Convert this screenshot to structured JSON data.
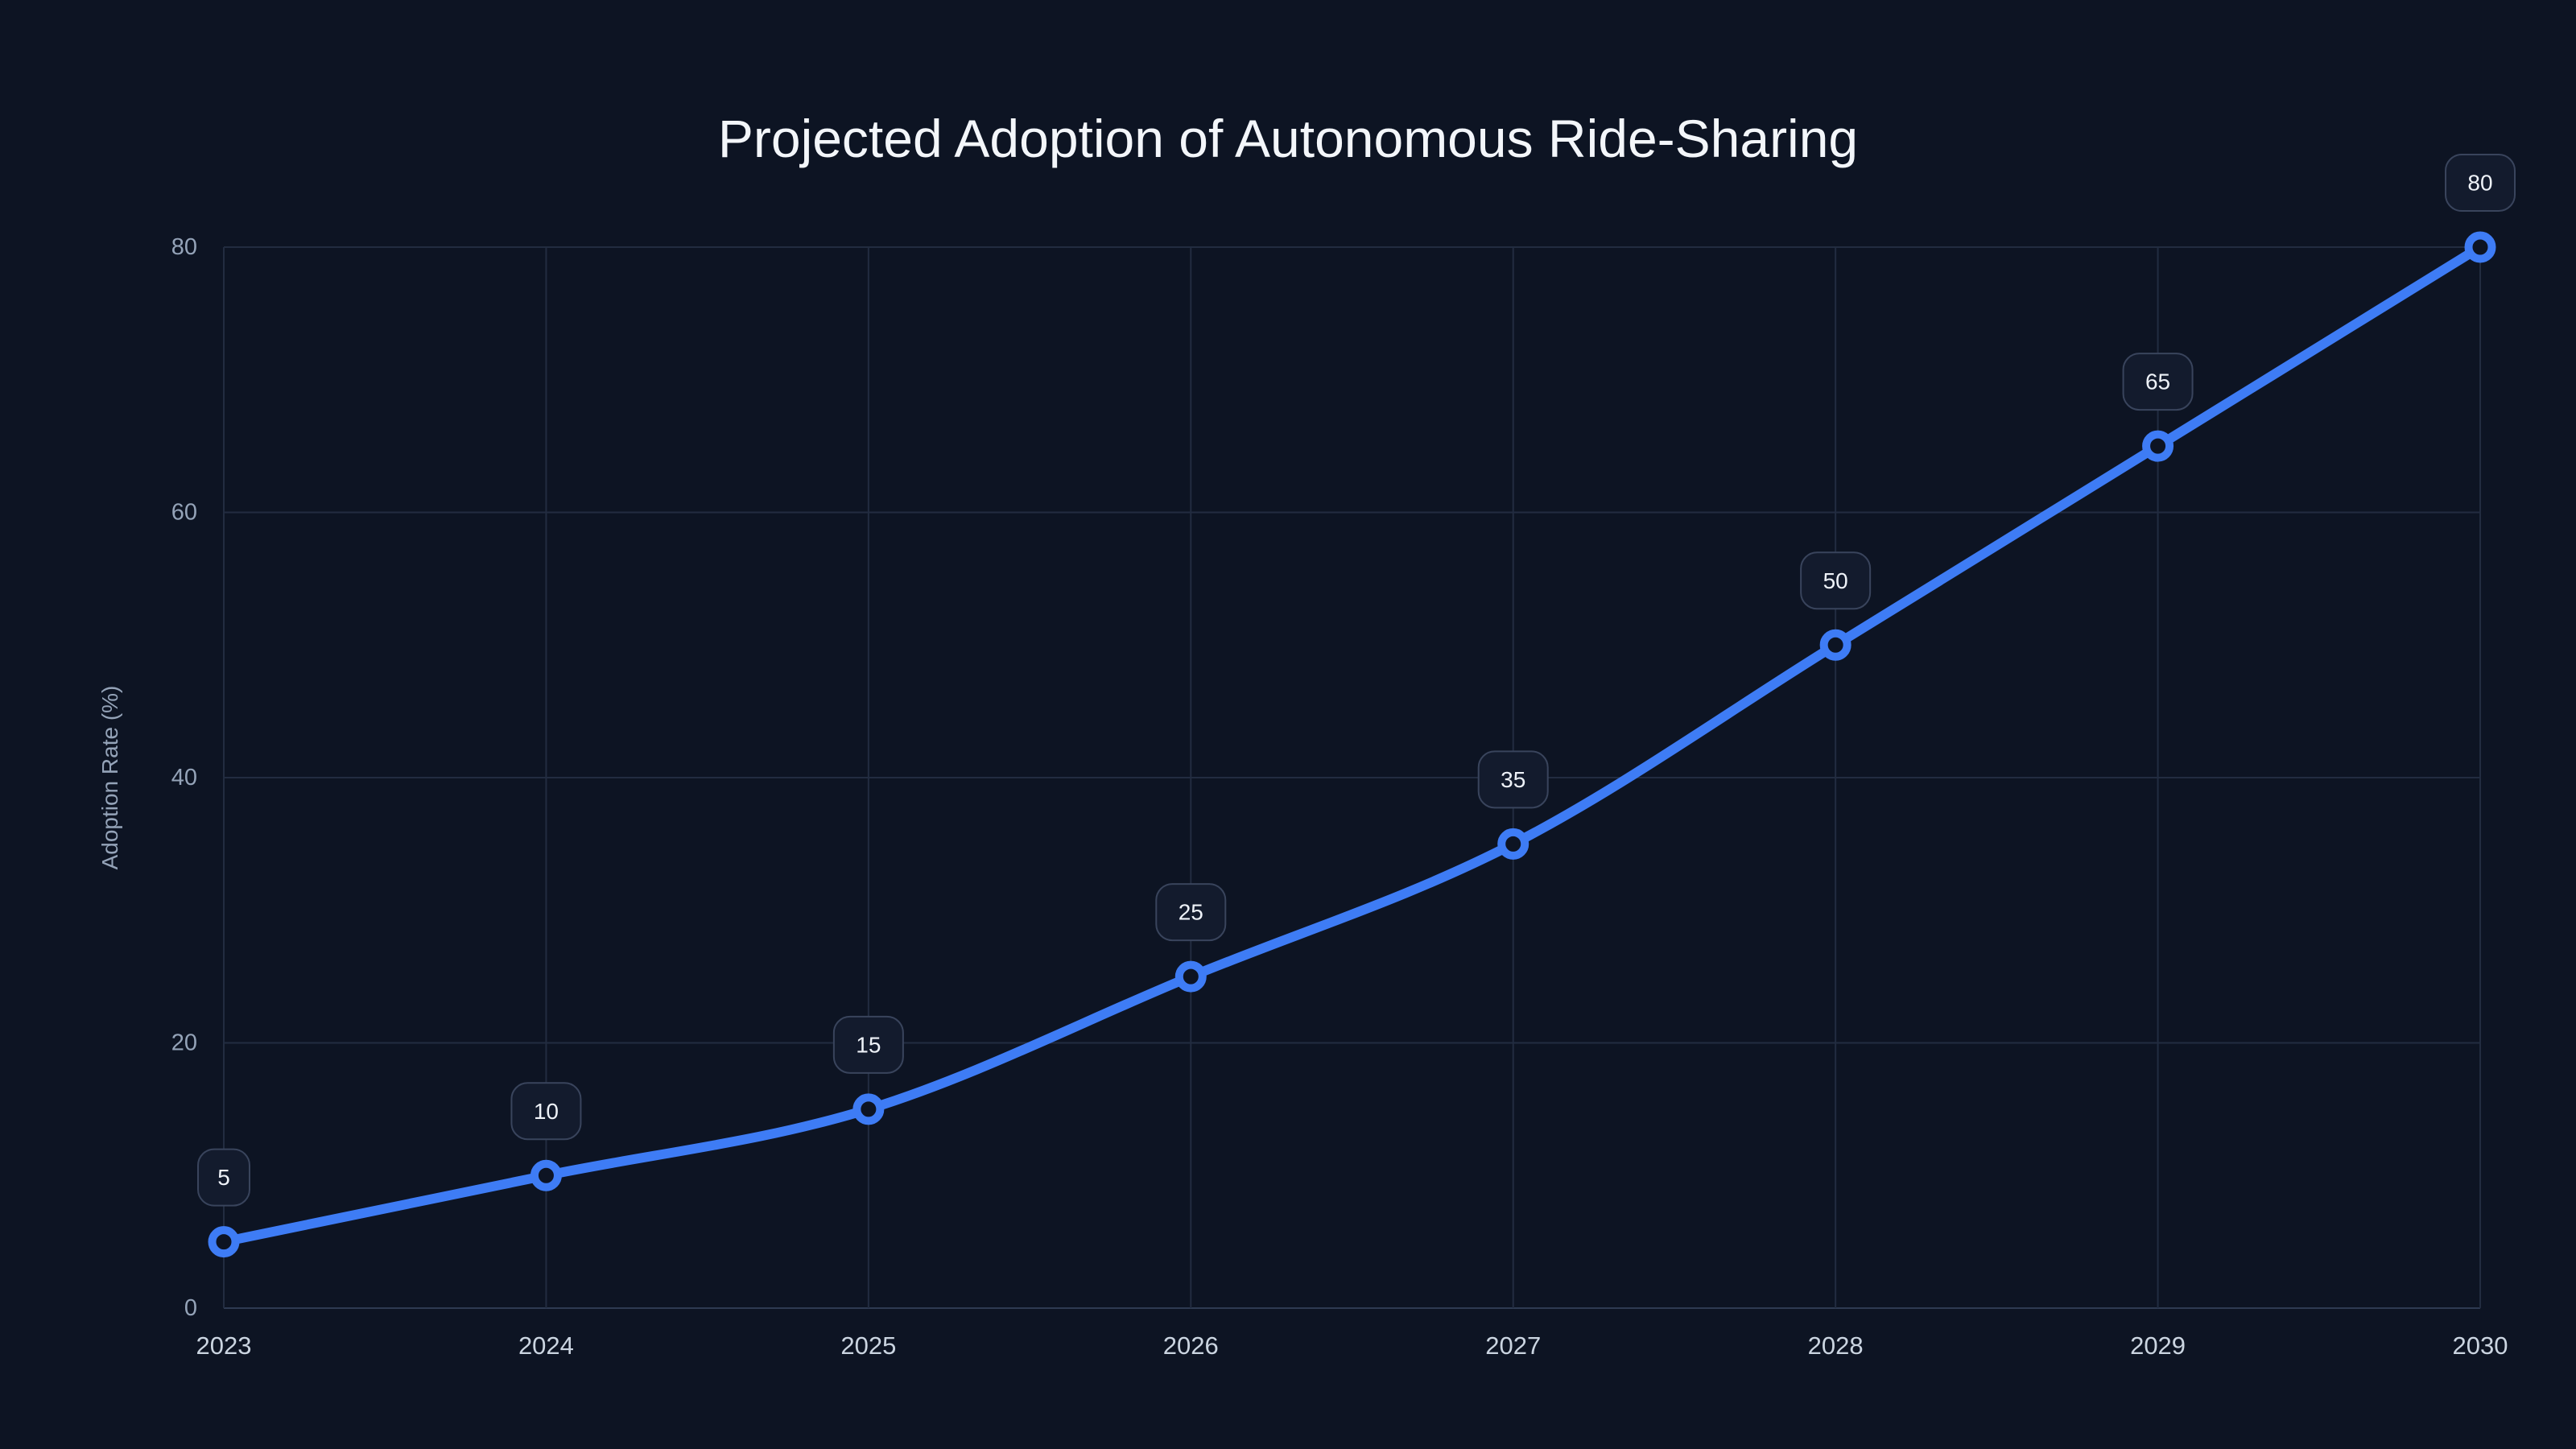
{
  "chart_data": {
    "type": "line",
    "title": "Projected Adoption of Autonomous Ride-Sharing",
    "xlabel": "",
    "ylabel": "Adoption Rate (%)",
    "x": [
      "2023",
      "2024",
      "2025",
      "2026",
      "2027",
      "2028",
      "2029",
      "2030"
    ],
    "series": [
      {
        "name": "Adoption Rate (%)",
        "values": [
          5,
          10,
          15,
          25,
          35,
          50,
          65,
          80
        ]
      }
    ],
    "point_labels": [
      "5",
      "10",
      "15",
      "25",
      "35",
      "50",
      "65",
      "80"
    ],
    "ylim": [
      0,
      80
    ],
    "yticks": [
      0,
      20,
      40,
      60,
      80
    ],
    "grid": true,
    "legend_position": "none",
    "colors": {
      "background": "#0d1423",
      "line": "#3e7cf5",
      "marker_ring": "#3e7cf5",
      "marker_fill": "#0d1423",
      "gridline": "#222c40",
      "axis_line": "#2e3a52",
      "tick_text": "#94a3b8",
      "year_text": "#cbd5e1",
      "title_text": "#f3f6fa",
      "label_box_fill": "#131b2d",
      "label_box_border": "#39445c",
      "label_text": "#eef2f8"
    }
  }
}
